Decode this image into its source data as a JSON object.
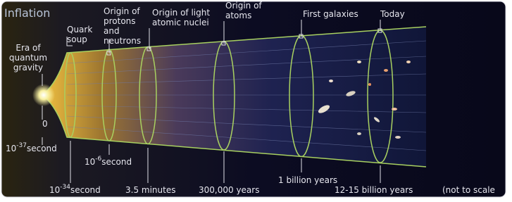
{
  "title": "Inflation",
  "epochs": [
    {
      "lines": [
        "Era of",
        "quantum",
        "gravity"
      ]
    },
    {
      "lines": [
        "Quark",
        "soup"
      ]
    },
    {
      "lines": [
        "Origin of",
        "protons",
        "and",
        "neutrons"
      ]
    },
    {
      "lines": [
        "Origin of light",
        "atomic nuclei"
      ]
    },
    {
      "lines": [
        "Origin of",
        "atoms"
      ]
    },
    {
      "lines": [
        "First galaxies"
      ]
    },
    {
      "lines": [
        "Today"
      ]
    }
  ],
  "times": [
    {
      "text": "0"
    },
    {
      "base": "10",
      "exponent": "-37",
      "unit": "second"
    },
    {
      "base": "10",
      "exponent": "-34",
      "unit": "second"
    },
    {
      "base": "10",
      "exponent": "-6",
      "unit": "second"
    },
    {
      "text": "3.5 minutes"
    },
    {
      "text": "300,000 years"
    },
    {
      "text": "1 billion years"
    },
    {
      "text": "12-15 billion years"
    },
    {
      "text": "(not to scale"
    }
  ]
}
